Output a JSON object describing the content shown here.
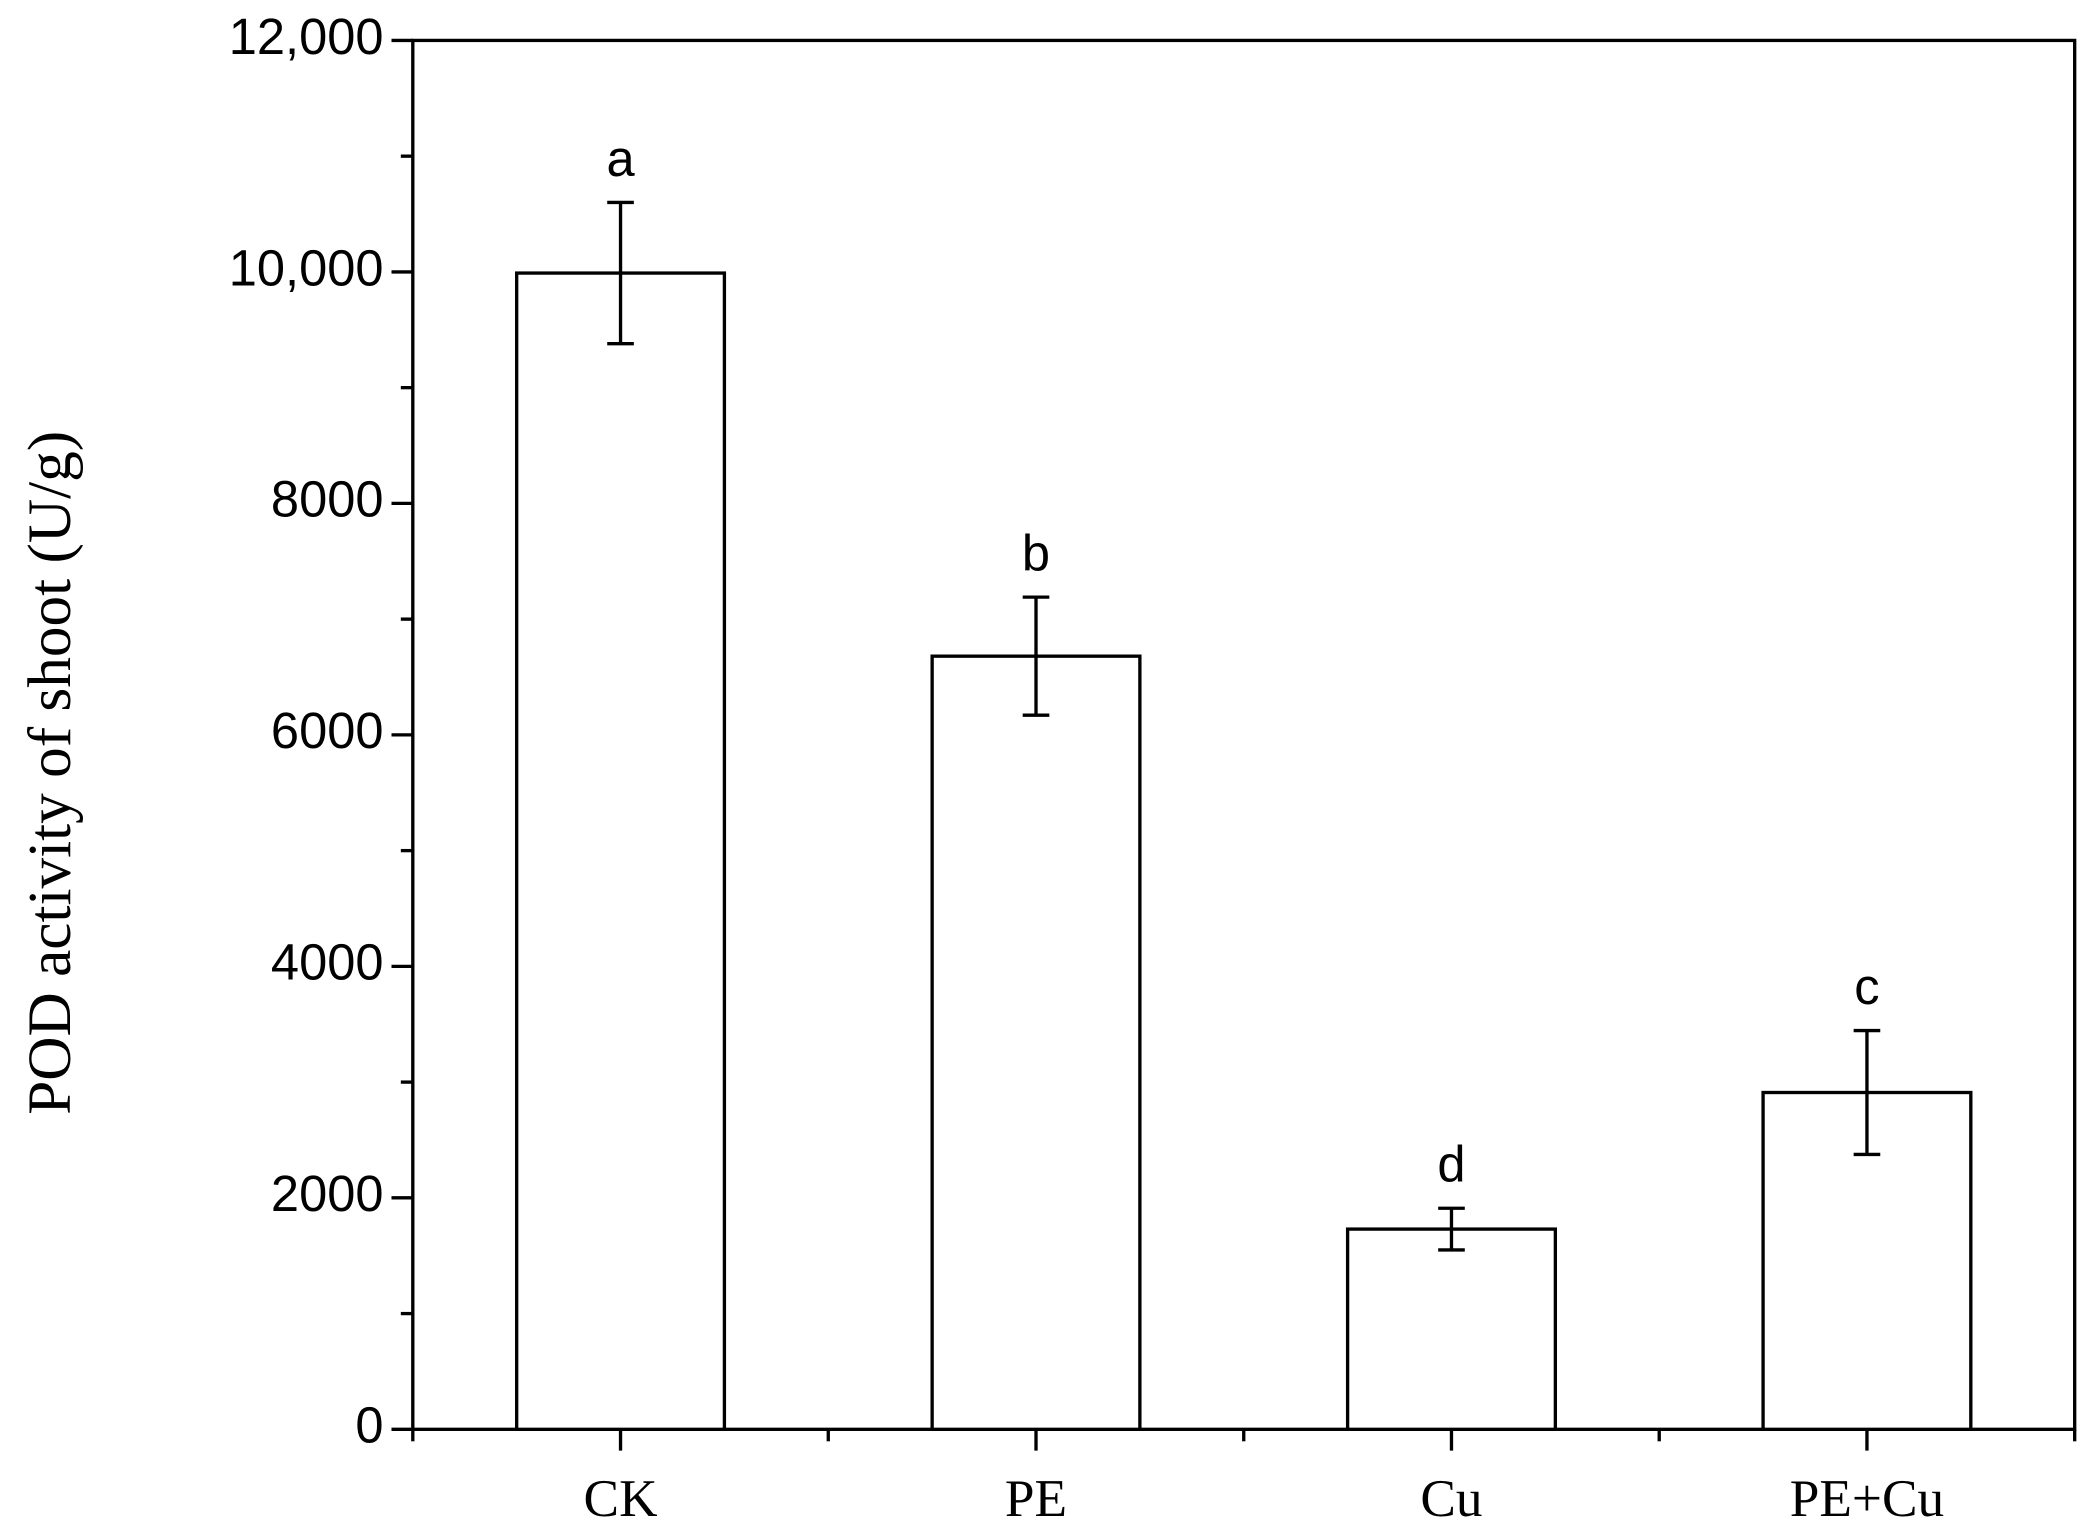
{
  "chart_data": {
    "type": "bar",
    "ylabel": "POD activity of shoot (U/g)",
    "categories": [
      "CK",
      "PE",
      "Cu",
      "PE+Cu"
    ],
    "values": [
      9990,
      6680,
      1730,
      2910
    ],
    "errors": [
      610,
      510,
      180,
      535
    ],
    "annotations": [
      "a",
      "b",
      "d",
      "c"
    ],
    "color": "#ffffff",
    "edge_color": "#000000",
    "ylim": [
      0,
      12000
    ],
    "yticks": [
      0,
      2000,
      4000,
      6000,
      8000,
      {
        "value": 10000,
        "label": "10,000"
      },
      {
        "value": 12000,
        "label": "12,000"
      }
    ],
    "minor_yticks": [
      1000,
      3000,
      5000,
      7000,
      9000,
      11000
    ]
  }
}
